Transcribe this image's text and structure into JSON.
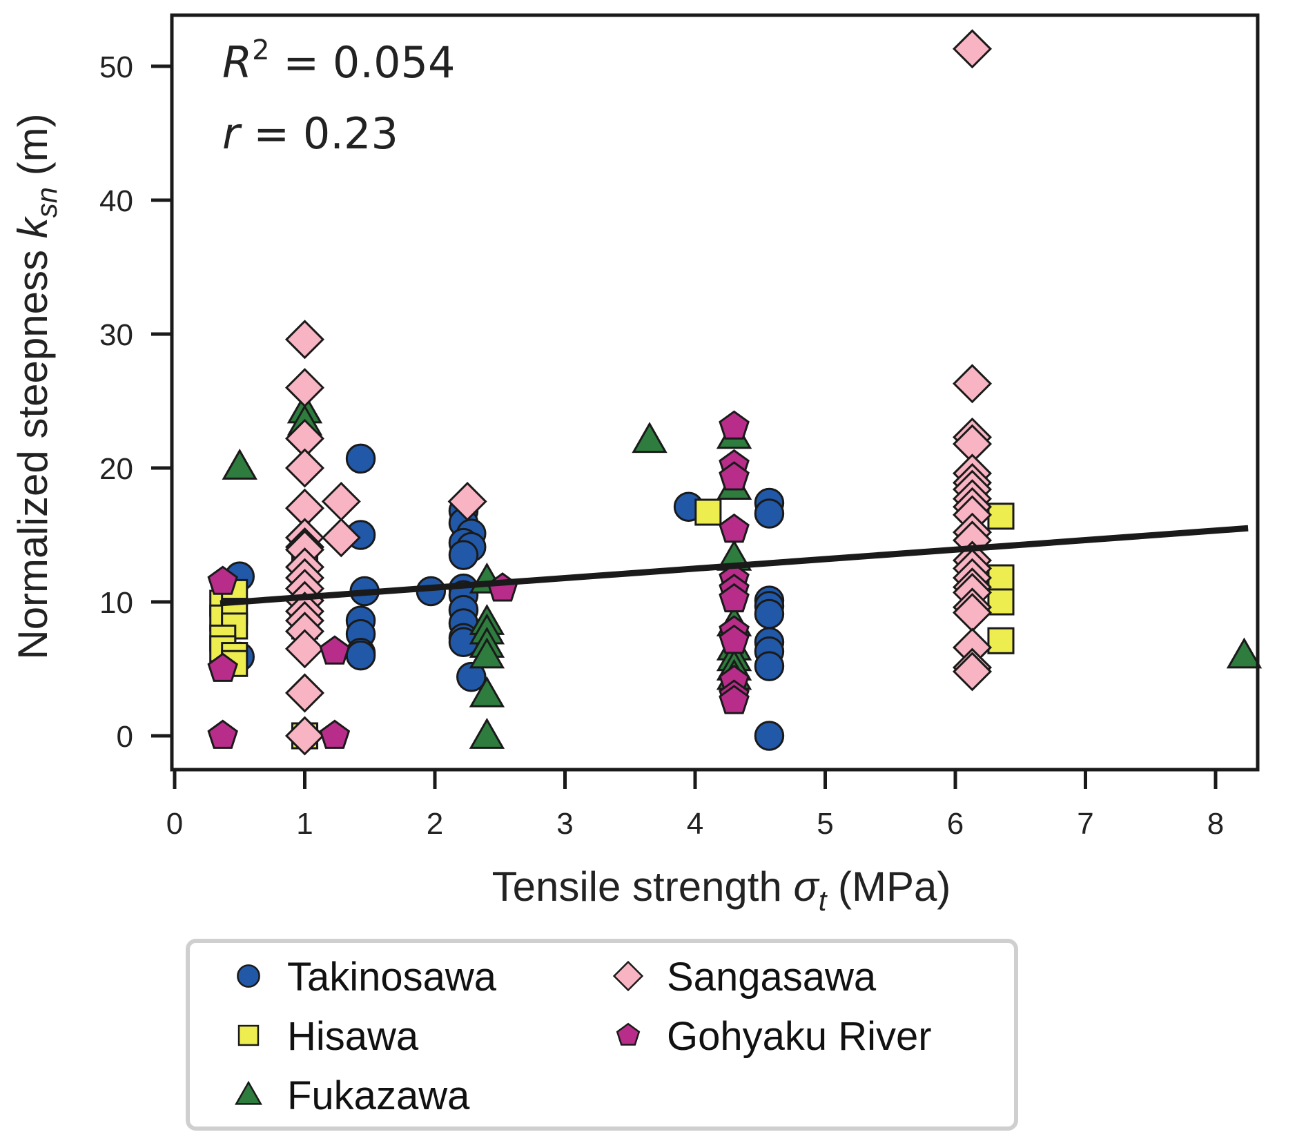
{
  "chart_data": {
    "type": "scatter",
    "title": "",
    "xlabel": "Tensile strength σ_t (MPa)",
    "xlabel_parts": {
      "main": "Tensile strength ",
      "symbol": "σ",
      "sub": "t",
      "unit": " (MPa)"
    },
    "ylabel": "Normalized steepness k_sn (m)",
    "ylabel_parts": {
      "main": "Normalized steepness ",
      "symbol": "k",
      "sub": "sn",
      "unit": " (m)"
    },
    "xlim": [
      0,
      8.5
    ],
    "ylim": [
      -2.5,
      54
    ],
    "xticks": [
      0,
      1,
      2,
      3,
      4,
      5,
      6,
      7,
      8
    ],
    "yticks": [
      0,
      10,
      20,
      30,
      40,
      50
    ],
    "grid": false,
    "legend_position": "below",
    "annotations": [
      {
        "label": "R²",
        "text": "R² = 0.054",
        "main": "R",
        "sup": "2",
        "rest": " = 0.054"
      },
      {
        "label": "r",
        "text": "r = 0.23",
        "main": "r",
        "rest": " = 0.23"
      }
    ],
    "regression": {
      "name": "Linear fit",
      "x": [
        0.35,
        8.25
      ],
      "y": [
        9.9,
        15.5
      ],
      "color": "#1a1a1a"
    },
    "series": [
      {
        "name": "Takinosawa",
        "marker": "circle",
        "color": "#2158a8",
        "points": [
          [
            0.5,
            11.9
          ],
          [
            0.5,
            5.9
          ],
          [
            1.43,
            20.7
          ],
          [
            1.43,
            15.0
          ],
          [
            1.46,
            10.8
          ],
          [
            1.43,
            8.6
          ],
          [
            1.43,
            7.6
          ],
          [
            1.43,
            6.2
          ],
          [
            1.43,
            6.0
          ],
          [
            1.97,
            10.8
          ],
          [
            2.22,
            16.8
          ],
          [
            2.22,
            15.9
          ],
          [
            2.28,
            15.1
          ],
          [
            2.22,
            14.4
          ],
          [
            2.28,
            14.1
          ],
          [
            2.22,
            13.5
          ],
          [
            2.22,
            11.0
          ],
          [
            2.22,
            10.5
          ],
          [
            2.22,
            9.4
          ],
          [
            2.22,
            8.4
          ],
          [
            2.22,
            7.3
          ],
          [
            2.22,
            7.0
          ],
          [
            2.28,
            4.4
          ],
          [
            3.95,
            17.1
          ],
          [
            4.57,
            17.4
          ],
          [
            4.57,
            16.6
          ],
          [
            4.57,
            10.1
          ],
          [
            4.57,
            9.7
          ],
          [
            4.57,
            9.1
          ],
          [
            4.57,
            7.0
          ],
          [
            4.57,
            6.3
          ],
          [
            4.57,
            5.2
          ],
          [
            4.57,
            0.0
          ]
        ]
      },
      {
        "name": "Hisawa",
        "marker": "square",
        "color": "#eded50",
        "points": [
          [
            0.37,
            9.9
          ],
          [
            0.37,
            8.8
          ],
          [
            0.46,
            10.7
          ],
          [
            0.46,
            9.3
          ],
          [
            0.46,
            8.2
          ],
          [
            0.37,
            7.3
          ],
          [
            0.37,
            6.5
          ],
          [
            0.46,
            6.0
          ],
          [
            0.46,
            5.4
          ],
          [
            1.0,
            13.2
          ],
          [
            1.0,
            11.6
          ],
          [
            1.0,
            8.2
          ],
          [
            1.0,
            0.0
          ],
          [
            4.1,
            16.7
          ],
          [
            6.35,
            16.4
          ],
          [
            6.35,
            11.8
          ],
          [
            6.35,
            10.0
          ],
          [
            6.35,
            7.1
          ]
        ]
      },
      {
        "name": "Fukazawa",
        "marker": "triangle",
        "color": "#2e7d3e",
        "points": [
          [
            0.5,
            20.1
          ],
          [
            1.0,
            24.3
          ],
          [
            1.0,
            23.4
          ],
          [
            2.4,
            11.6
          ],
          [
            2.4,
            8.5
          ],
          [
            2.4,
            7.8
          ],
          [
            2.4,
            6.8
          ],
          [
            2.4,
            6.0
          ],
          [
            2.4,
            3.1
          ],
          [
            2.4,
            0.0
          ],
          [
            3.65,
            22.1
          ],
          [
            4.3,
            22.4
          ],
          [
            4.3,
            18.6
          ],
          [
            4.3,
            13.3
          ],
          [
            4.3,
            8.4
          ],
          [
            4.3,
            6.6
          ],
          [
            4.3,
            5.8
          ],
          [
            4.3,
            5.1
          ],
          [
            4.3,
            4.4
          ],
          [
            8.22,
            6.0
          ]
        ]
      },
      {
        "name": "Sangasawa",
        "marker": "diamond",
        "color": "#f9b4c3",
        "points": [
          [
            1.0,
            29.6
          ],
          [
            1.0,
            26.0
          ],
          [
            1.0,
            22.2
          ],
          [
            1.0,
            20.0
          ],
          [
            1.0,
            17.0
          ],
          [
            1.0,
            14.8
          ],
          [
            1.0,
            14.1
          ],
          [
            1.0,
            13.9
          ],
          [
            1.0,
            12.6
          ],
          [
            1.0,
            11.8
          ],
          [
            1.0,
            11.0
          ],
          [
            1.0,
            10.1
          ],
          [
            1.0,
            9.3
          ],
          [
            1.0,
            8.6
          ],
          [
            1.0,
            7.8
          ],
          [
            1.0,
            6.5
          ],
          [
            1.0,
            3.2
          ],
          [
            1.0,
            0.0
          ],
          [
            1.28,
            17.5
          ],
          [
            1.28,
            14.8
          ],
          [
            2.25,
            17.5
          ],
          [
            6.13,
            51.3
          ],
          [
            6.13,
            26.3
          ],
          [
            6.13,
            22.3
          ],
          [
            6.13,
            21.8
          ],
          [
            6.13,
            19.6
          ],
          [
            6.13,
            18.9
          ],
          [
            6.13,
            18.4
          ],
          [
            6.13,
            17.7
          ],
          [
            6.13,
            17.1
          ],
          [
            6.13,
            16.5
          ],
          [
            6.13,
            15.2
          ],
          [
            6.13,
            14.6
          ],
          [
            6.13,
            13.1
          ],
          [
            6.13,
            12.5
          ],
          [
            6.13,
            11.8
          ],
          [
            6.13,
            11.1
          ],
          [
            6.13,
            10.7
          ],
          [
            6.13,
            9.6
          ],
          [
            6.13,
            9.2
          ],
          [
            6.13,
            6.6
          ],
          [
            6.13,
            5.1
          ],
          [
            6.13,
            4.8
          ]
        ]
      },
      {
        "name": "Gohyaku River",
        "marker": "pentagon",
        "color": "#b82d8a",
        "points": [
          [
            0.37,
            11.5
          ],
          [
            0.37,
            5.0
          ],
          [
            0.37,
            0.0
          ],
          [
            1.23,
            6.3
          ],
          [
            1.23,
            0.0
          ],
          [
            2.52,
            11.0
          ],
          [
            4.3,
            23.1
          ],
          [
            4.3,
            20.2
          ],
          [
            4.3,
            19.3
          ],
          [
            4.3,
            15.4
          ],
          [
            4.3,
            11.7
          ],
          [
            4.3,
            10.9
          ],
          [
            4.3,
            10.2
          ],
          [
            4.3,
            7.8
          ],
          [
            4.3,
            7.1
          ],
          [
            4.3,
            4.1
          ],
          [
            4.3,
            3.0
          ],
          [
            4.3,
            2.6
          ]
        ]
      }
    ]
  }
}
